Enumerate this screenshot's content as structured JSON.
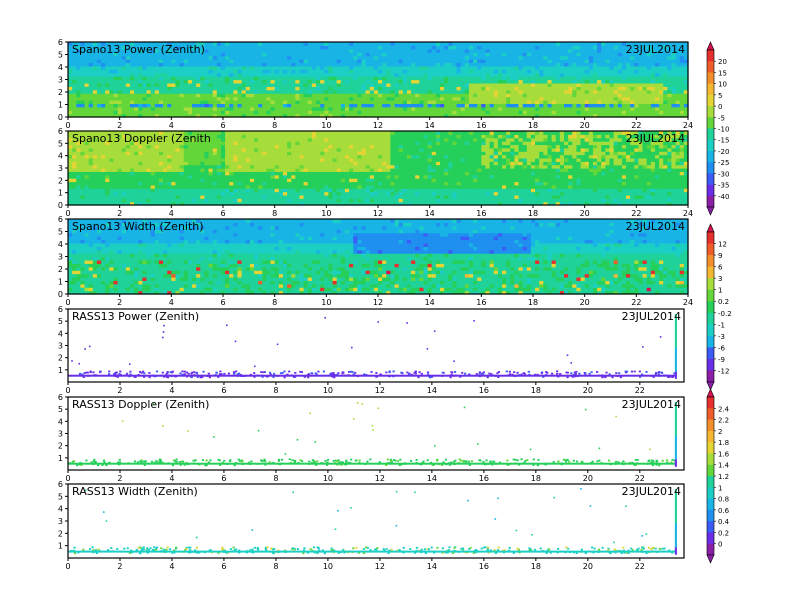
{
  "colors": {
    "scale": [
      "#8a1fa6",
      "#6a2ee8",
      "#3b5cf5",
      "#1f8ff0",
      "#19b4e6",
      "#1ccfc4",
      "#1fd29a",
      "#25cf5a",
      "#63d73a",
      "#a7dd3a",
      "#e4d534",
      "#f3b731",
      "#f28e2c",
      "#ee5c2a",
      "#e52f2f",
      "#d9124f"
    ]
  },
  "chart_data": [
    {
      "type": "heatmap",
      "title": "Spano13 Power (Zenith)",
      "date": "23JUL2014",
      "ylim": [
        0,
        6
      ],
      "yticks": [
        "0",
        "1",
        "2",
        "3",
        "4",
        "5",
        "6"
      ],
      "xlim": [
        0,
        24
      ],
      "xticks": [
        "0",
        "2",
        "4",
        "6",
        "8",
        "10",
        "12",
        "14",
        "16",
        "18",
        "20",
        "22",
        "24"
      ],
      "colorbar_group": "power"
    },
    {
      "type": "heatmap",
      "title": "Spano13 Doppler (Zenith",
      "date": "23JUL2014",
      "ylim": [
        0,
        6
      ],
      "yticks": [
        "0",
        "1",
        "2",
        "3",
        "4",
        "5",
        "6"
      ],
      "xlim": [
        0,
        24
      ],
      "xticks": [
        "0",
        "2",
        "4",
        "6",
        "8",
        "10",
        "12",
        "14",
        "16",
        "18",
        "20",
        "22",
        "24"
      ],
      "colorbar_group": "power"
    },
    {
      "type": "heatmap",
      "title": "Spano13 Width (Zenith)",
      "date": "23JUL2014",
      "ylim": [
        0,
        6
      ],
      "yticks": [
        "0",
        "1",
        "2",
        "3",
        "4",
        "5",
        "6"
      ],
      "xlim": [
        0,
        24
      ],
      "xticks": [
        "0",
        "2",
        "4",
        "6",
        "8",
        "10",
        "12",
        "14",
        "16",
        "18",
        "20",
        "22",
        "24"
      ],
      "colorbar_group": "width"
    },
    {
      "type": "scatter",
      "title": "RASS13 Power (Zenith)",
      "date": "23JUL2014",
      "ylim": [
        0,
        6
      ],
      "yticks": [
        "1",
        "2",
        "3",
        "4",
        "5",
        "6"
      ],
      "xlim": [
        0,
        23.7
      ],
      "xticks": [
        "0",
        "2",
        "4",
        "6",
        "8",
        "10",
        "12",
        "14",
        "16",
        "18",
        "20",
        "22"
      ],
      "colorbar_group": "width"
    },
    {
      "type": "scatter",
      "title": "RASS13 Doppler (Zenith)",
      "date": "23JUL2014",
      "ylim": [
        0,
        6
      ],
      "yticks": [
        "1",
        "2",
        "3",
        "4",
        "5",
        "6"
      ],
      "xlim": [
        0,
        23.7
      ],
      "xticks": [
        "0",
        "2",
        "4",
        "6",
        "8",
        "10",
        "12",
        "14",
        "16",
        "18",
        "20",
        "22"
      ],
      "colorbar_group": "rass"
    },
    {
      "type": "scatter",
      "title": "RASS13 Width (Zenith)",
      "date": "23JUL2014",
      "ylim": [
        0,
        6
      ],
      "yticks": [
        "1",
        "2",
        "3",
        "4",
        "5",
        "6"
      ],
      "xlim": [
        0,
        23.7
      ],
      "xticks": [
        "0",
        "2",
        "4",
        "6",
        "8",
        "10",
        "12",
        "14",
        "16",
        "18",
        "20",
        "22"
      ],
      "colorbar_group": "rass"
    }
  ],
  "colorbars": [
    {
      "name": "power",
      "labels": [
        "20",
        "15",
        "10",
        "5",
        "0",
        "-5",
        "-10",
        "-15",
        "-20",
        "-25",
        "-30",
        "-35",
        "-40"
      ]
    },
    {
      "name": "width",
      "labels": [
        "12",
        "9",
        "6",
        "3",
        "1",
        "0.2",
        "-0.2",
        "-1",
        "-3",
        "-6",
        "-9",
        "-12"
      ]
    },
    {
      "name": "rass",
      "labels": [
        "2.4",
        "2.2",
        "2",
        "1.8",
        "1.6",
        "1.4",
        "1.2",
        "1",
        "0.8",
        "0.6",
        "0.4",
        "0.2",
        "0"
      ]
    }
  ]
}
